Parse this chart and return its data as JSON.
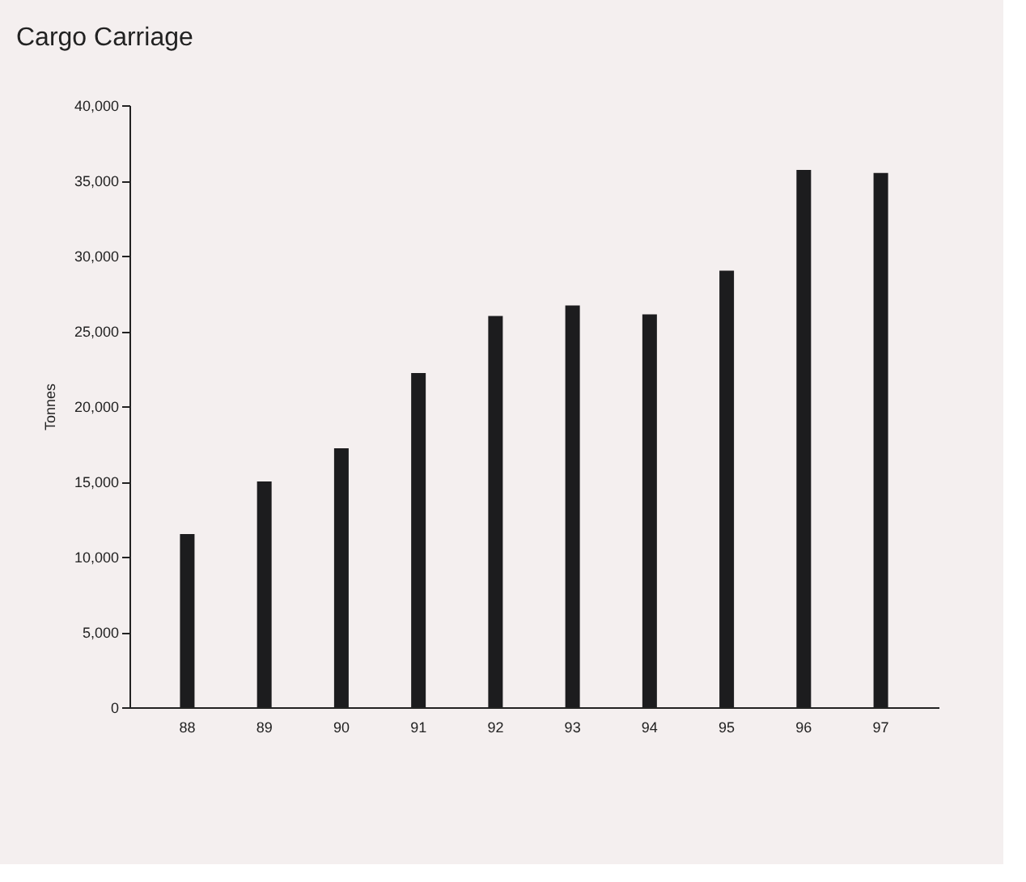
{
  "chart_data": {
    "type": "bar",
    "title": "Cargo Carriage",
    "ylabel": "Tonnes",
    "categories": [
      "88",
      "89",
      "90",
      "91",
      "92",
      "93",
      "94",
      "95",
      "96",
      "97"
    ],
    "values": [
      11500,
      15000,
      17200,
      22200,
      26000,
      26700,
      26100,
      29000,
      35700,
      35500
    ],
    "color": "#1c1c1e",
    "ylim": [
      0,
      40000
    ],
    "yticks": [
      0,
      {
        "value": 5000,
        "label": "5,000"
      },
      {
        "value": 10000,
        "label": "10,000"
      },
      {
        "value": 15000,
        "label": "15,000"
      },
      {
        "value": 20000,
        "label": "20,000"
      },
      {
        "value": 25000,
        "label": "25,000"
      },
      {
        "value": 30000,
        "label": "30,000"
      },
      {
        "value": 35000,
        "label": "35,000"
      },
      {
        "value": 40000,
        "label": "40,000"
      }
    ],
    "grid": false
  }
}
